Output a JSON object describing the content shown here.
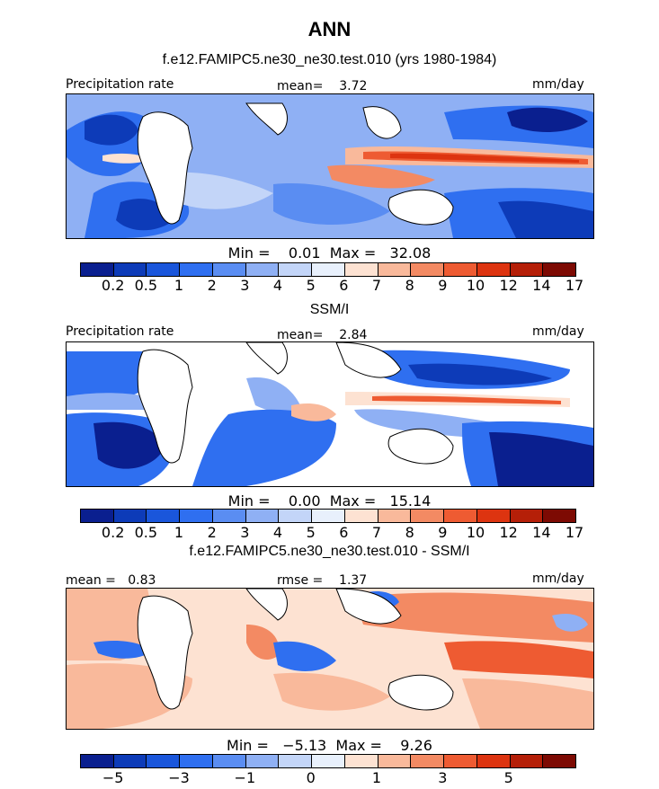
{
  "season": "ANN",
  "panels": [
    {
      "title": "f.e12.FAMIPC5.ne30_ne30.test.010 (yrs 1980-1984)",
      "left_label": "Precipitation rate",
      "center_label": "mean=    3.72",
      "right_label": "mm/day",
      "minmax": "Min =    0.01  Max =   32.08",
      "palette": "precip",
      "tick_labels": [
        "0.2",
        "0.5",
        "1",
        "2",
        "3",
        "4",
        "5",
        "6",
        "7",
        "8",
        "9",
        "10",
        "12",
        "14",
        "17"
      ]
    },
    {
      "title": "SSM/I",
      "left_label": "Precipitation rate",
      "center_label": "mean=    2.84",
      "right_label": "mm/day",
      "minmax": "Min =    0.00  Max =   15.14",
      "palette": "precip",
      "tick_labels": [
        "0.2",
        "0.5",
        "1",
        "2",
        "3",
        "4",
        "5",
        "6",
        "7",
        "8",
        "9",
        "10",
        "12",
        "14",
        "17"
      ]
    },
    {
      "title": "f.e12.FAMIPC5.ne30_ne30.test.010 - SSM/I",
      "left_label": "mean =   0.83",
      "center_label": "rmse =    1.37",
      "right_label": "mm/day",
      "minmax": "Min =   −5.13  Max =    9.26",
      "palette": "diff",
      "tick_labels": [
        "−5",
        "−3",
        "−1",
        "0",
        "1",
        "3",
        "5"
      ]
    }
  ],
  "colors": {
    "precip": [
      "#0a1f8f",
      "#0d3bb8",
      "#1a56db",
      "#2f6ff0",
      "#5a8df2",
      "#8fb0f4",
      "#c3d5f8",
      "#e8f0fc",
      "#fde2d2",
      "#f9b99b",
      "#f38a63",
      "#ee5b32",
      "#dd3410",
      "#b51f08",
      "#7d0a03"
    ],
    "diff": [
      "#0a1f8f",
      "#0d3bb8",
      "#1a56db",
      "#2f6ff0",
      "#5a8df2",
      "#8fb0f4",
      "#c3d5f8",
      "#e8f0fc",
      "#fde2d2",
      "#f9b99b",
      "#f38a63",
      "#ee5b32",
      "#dd3410",
      "#b51f08",
      "#7d0a03"
    ]
  }
}
